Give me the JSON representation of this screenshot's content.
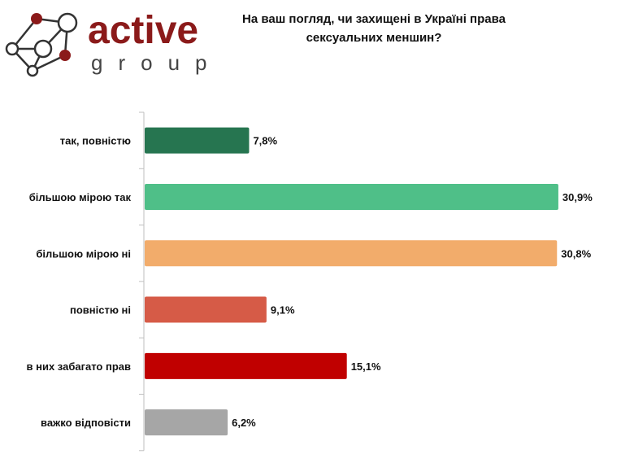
{
  "logo": {
    "word1": "active",
    "word2": "group"
  },
  "chart_data": {
    "type": "bar",
    "orientation": "horizontal",
    "title": "На ваш погляд, чи захищені в Україні права сексуальних меншин?",
    "title_lines": [
      "На ваш погляд, чи захищені в Україні права",
      "сексуальних меншин?"
    ],
    "categories": [
      "так, повністю",
      "більшою мірою так",
      "більшою мірою ні",
      "повністю ні",
      "в них забагато прав",
      "важко відповісти"
    ],
    "values": [
      7.8,
      30.9,
      30.8,
      9.1,
      15.1,
      6.2
    ],
    "labels": [
      "7,8%",
      "30,9%",
      "30,8%",
      "9,1%",
      "15,1%",
      "6,2%"
    ],
    "colors": [
      "#267550",
      "#4fbf88",
      "#f2ac6b",
      "#d65b47",
      "#c00000",
      "#a6a6a6"
    ],
    "xlabel": "",
    "ylabel": "",
    "xlim": [
      0,
      33
    ],
    "grid": false
  }
}
